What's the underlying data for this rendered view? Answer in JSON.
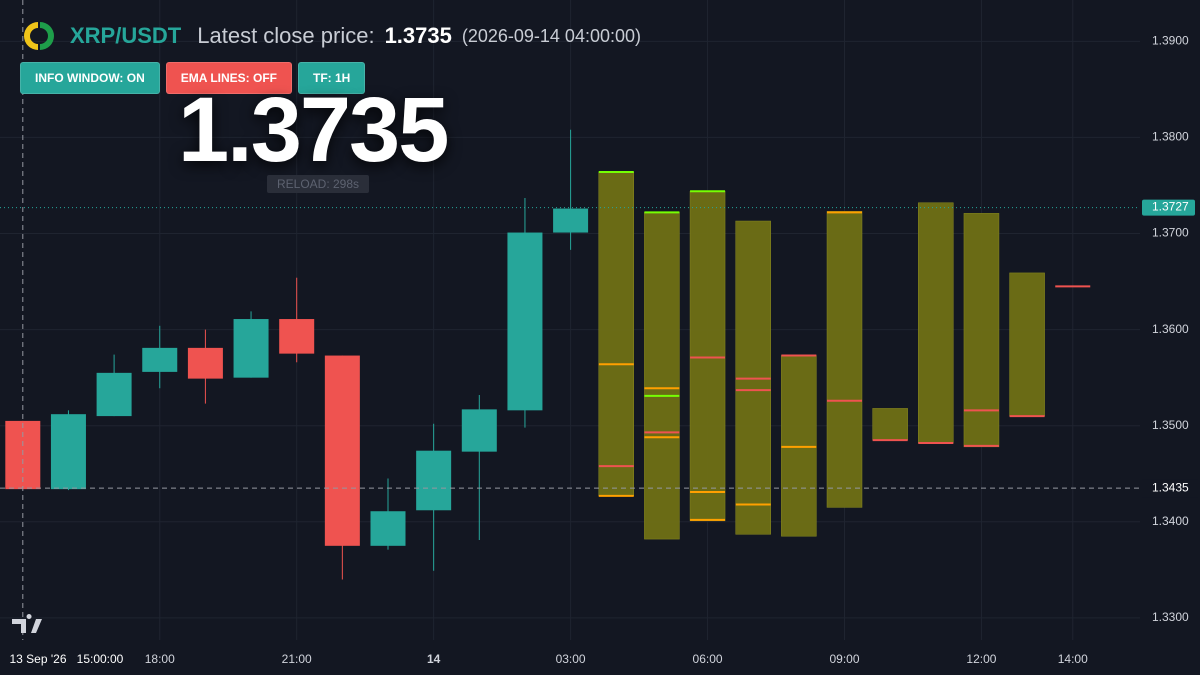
{
  "header": {
    "symbol": "XRP/USDT",
    "close_label": "Latest close price:",
    "close_price": "1.3735",
    "close_time": "(2026-09-14 04:00:00)"
  },
  "buttons": [
    "INFO WINDOW: ON",
    "EMA LINES: OFF",
    "TF: 1H"
  ],
  "big_price": "1.3735",
  "reload": "RELOAD: 298s",
  "chart_data": {
    "type": "candlestick",
    "categories": [
      null,
      null,
      null,
      "18:00",
      null,
      null,
      "21:00",
      null,
      null,
      "14",
      null,
      null,
      "03:00",
      null,
      null,
      "06:00",
      null,
      null,
      "09:00",
      null,
      null,
      "12:00",
      null,
      "14:00"
    ],
    "open": [
      1.3505,
      1.3434,
      1.351,
      1.3556,
      1.3581,
      1.355,
      1.3611,
      1.3573,
      1.3375,
      1.3412,
      1.3473,
      1.3516,
      1.3701,
      null,
      null,
      null,
      null,
      null,
      null,
      null,
      null,
      null,
      null,
      null
    ],
    "high": [
      1.3505,
      1.3516,
      1.3574,
      1.3604,
      1.36,
      1.3619,
      1.3654,
      1.3573,
      1.3445,
      1.3502,
      1.3532,
      1.3737,
      1.3808,
      null,
      null,
      null,
      null,
      null,
      null,
      null,
      null,
      null,
      null,
      null
    ],
    "low": [
      1.3434,
      1.3433,
      1.351,
      1.3539,
      1.3523,
      1.355,
      1.3566,
      1.334,
      1.3371,
      1.3349,
      1.3381,
      1.3498,
      1.3683,
      null,
      null,
      null,
      null,
      null,
      null,
      null,
      null,
      null,
      null,
      null
    ],
    "close": [
      1.3434,
      1.3512,
      1.3555,
      1.3581,
      1.3549,
      1.3611,
      1.3575,
      1.3375,
      1.3411,
      1.3474,
      1.3517,
      1.3701,
      1.3726,
      null,
      null,
      null,
      null,
      null,
      null,
      null,
      null,
      null,
      null,
      null
    ],
    "up_color": "#26a69a",
    "down_color": "#ef5350",
    "zones": {
      "color": "#6f7015",
      "top": [
        null,
        null,
        null,
        null,
        null,
        null,
        null,
        null,
        null,
        null,
        null,
        null,
        null,
        1.3764,
        1.3722,
        1.3744,
        1.3713,
        1.3573,
        1.3723,
        1.3518,
        1.3732,
        1.3721,
        1.3659,
        null
      ],
      "bottom": [
        null,
        null,
        null,
        null,
        null,
        null,
        null,
        null,
        null,
        null,
        null,
        null,
        null,
        1.3427,
        1.3382,
        1.3401,
        1.3387,
        1.3385,
        1.3415,
        1.3485,
        1.3482,
        1.3478,
        1.351,
        null
      ],
      "levels": [
        [],
        [],
        [],
        [],
        [],
        [],
        [],
        [],
        [],
        [],
        [],
        [],
        [],
        [
          {
            "value": 1.3764,
            "color": "#76ff03"
          },
          {
            "value": 1.3564,
            "color": "#ffa000"
          },
          {
            "value": 1.3458,
            "color": "#ef5350"
          },
          {
            "value": 1.3427,
            "color": "#ffa000"
          }
        ],
        [
          {
            "value": 1.3722,
            "color": "#76ff03"
          },
          {
            "value": 1.3539,
            "color": "#ffa000"
          },
          {
            "value": 1.3531,
            "color": "#76ff03"
          },
          {
            "value": 1.3493,
            "color": "#ef5350"
          },
          {
            "value": 1.3488,
            "color": "#ffa000"
          }
        ],
        [
          {
            "value": 1.3744,
            "color": "#76ff03"
          },
          {
            "value": 1.3571,
            "color": "#ef5350"
          },
          {
            "value": 1.3431,
            "color": "#ffa000"
          },
          {
            "value": 1.3402,
            "color": "#ffa000"
          }
        ],
        [
          {
            "value": 1.3549,
            "color": "#ef5350"
          },
          {
            "value": 1.3537,
            "color": "#ef5350"
          },
          {
            "value": 1.3418,
            "color": "#ffa000"
          }
        ],
        [
          {
            "value": 1.3573,
            "color": "#ef5350"
          },
          {
            "value": 1.3478,
            "color": "#ffa000"
          }
        ],
        [
          {
            "value": 1.3722,
            "color": "#ffa000"
          },
          {
            "value": 1.3526,
            "color": "#ef5350"
          }
        ],
        [
          {
            "value": 1.3485,
            "color": "#ef5350"
          }
        ],
        [
          {
            "value": 1.3482,
            "color": "#ef5350"
          }
        ],
        [
          {
            "value": 1.3516,
            "color": "#ef5350"
          },
          {
            "value": 1.3479,
            "color": "#ef5350"
          }
        ],
        [
          {
            "value": 1.351,
            "color": "#ef5350"
          }
        ],
        [
          {
            "value": 1.3645,
            "color": "#ef5350"
          }
        ]
      ]
    },
    "ylim": [
      1.3277,
      1.3943
    ],
    "yticks": [
      {
        "value": 1.33,
        "label": "1.3300"
      },
      {
        "value": 1.34,
        "label": "1.3400"
      },
      {
        "value": 1.35,
        "label": "1.3500"
      },
      {
        "value": 1.36,
        "label": "1.3600"
      },
      {
        "value": 1.37,
        "label": "1.3700"
      },
      {
        "value": 1.38,
        "label": "1.3800"
      },
      {
        "value": 1.39,
        "label": "1.3900"
      }
    ],
    "grid": true,
    "last_price": 1.3727,
    "crosshair": {
      "price": 1.3435,
      "date": "13 Sep '26",
      "time": "15:00:00"
    }
  }
}
